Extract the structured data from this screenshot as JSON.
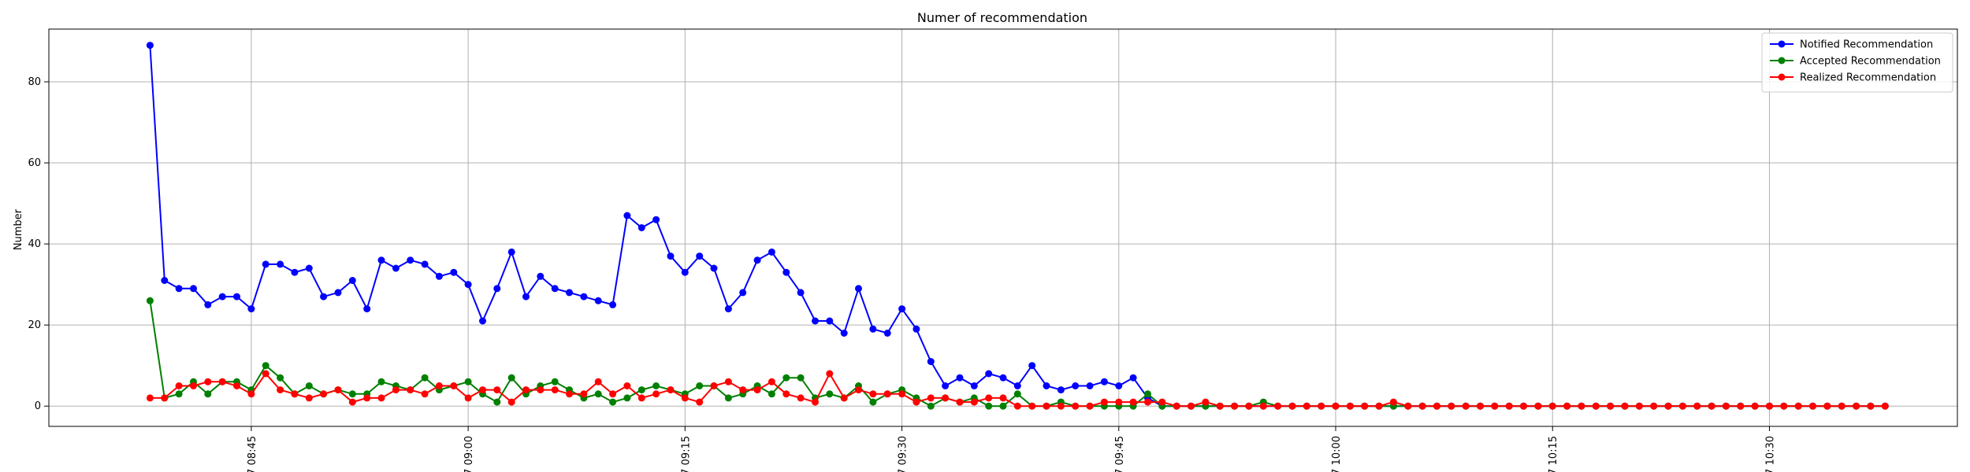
{
  "chart_data": {
    "type": "line",
    "title": "Numer of recommendation",
    "xlabel": "",
    "ylabel": "Number",
    "x_start": "08:38",
    "x_step_minutes": 1,
    "xlim": [
      "08:31",
      "10:43"
    ],
    "ylim": [
      -5,
      93
    ],
    "yticks": [
      0,
      20,
      40,
      60,
      80
    ],
    "xticks": [
      "08:45",
      "09:00",
      "09:15",
      "09:30",
      "09:45",
      "10:00",
      "10:15",
      "10:30"
    ],
    "xtick_labels": [
      "08:45",
      "09:00",
      "09:15",
      "09:30",
      "09:45",
      "10:00",
      "10:15",
      "10:30"
    ],
    "xtick_label_prefix": "7",
    "grid": true,
    "legend_position": "top-right",
    "series": [
      {
        "name": "Notified Recommendation",
        "color": "#0000ff",
        "values": [
          89,
          31,
          29,
          29,
          25,
          27,
          27,
          24,
          35,
          35,
          33,
          34,
          27,
          28,
          31,
          24,
          36,
          34,
          36,
          35,
          32,
          33,
          30,
          21,
          29,
          38,
          27,
          32,
          29,
          28,
          27,
          26,
          25,
          47,
          44,
          46,
          37,
          33,
          37,
          34,
          24,
          28,
          36,
          38,
          33,
          28,
          21,
          21,
          18,
          29,
          19,
          18,
          24,
          19,
          11,
          5,
          7,
          5,
          8,
          7,
          5,
          10,
          5,
          4,
          5,
          5,
          6,
          5,
          7,
          2,
          0,
          0,
          0,
          0,
          0,
          0,
          0,
          0,
          0,
          0,
          0,
          0,
          0,
          0,
          0,
          0,
          0,
          0,
          0,
          0,
          0,
          0,
          0,
          0,
          0,
          0,
          0,
          0,
          0,
          0,
          0,
          0,
          0,
          0,
          0,
          0,
          0,
          0,
          0,
          0,
          0,
          0,
          0,
          0,
          0,
          0,
          0,
          0,
          0,
          0,
          0
        ]
      },
      {
        "name": "Accepted Recommendation",
        "color": "#008000",
        "values": [
          26,
          2,
          3,
          6,
          3,
          6,
          6,
          4,
          10,
          7,
          3,
          5,
          3,
          4,
          3,
          3,
          6,
          5,
          4,
          7,
          4,
          5,
          6,
          3,
          1,
          7,
          3,
          5,
          6,
          4,
          2,
          3,
          1,
          2,
          4,
          5,
          4,
          3,
          5,
          5,
          2,
          3,
          5,
          3,
          7,
          7,
          2,
          3,
          2,
          5,
          1,
          3,
          4,
          2,
          0,
          2,
          1,
          2,
          0,
          0,
          3,
          0,
          0,
          1,
          0,
          0,
          0,
          0,
          0,
          3,
          0,
          0,
          0,
          0,
          0,
          0,
          0,
          1,
          0,
          0,
          0,
          0,
          0,
          0,
          0,
          0,
          0,
          0,
          0,
          0,
          0,
          0,
          0,
          0,
          0,
          0,
          0,
          0,
          0,
          0,
          0,
          0,
          0,
          0,
          0,
          0,
          0,
          0,
          0,
          0,
          0,
          0,
          0,
          0,
          0,
          0,
          0,
          0,
          0,
          0,
          0
        ]
      },
      {
        "name": "Realized Recommendation",
        "color": "#ff0000",
        "values": [
          2,
          2,
          5,
          5,
          6,
          6,
          5,
          3,
          8,
          4,
          3,
          2,
          3,
          4,
          1,
          2,
          2,
          4,
          4,
          3,
          5,
          5,
          2,
          4,
          4,
          1,
          4,
          4,
          4,
          3,
          3,
          6,
          3,
          5,
          2,
          3,
          4,
          2,
          1,
          5,
          6,
          4,
          4,
          6,
          3,
          2,
          1,
          8,
          2,
          4,
          3,
          3,
          3,
          1,
          2,
          2,
          1,
          1,
          2,
          2,
          0,
          0,
          0,
          0,
          0,
          0,
          1,
          1,
          1,
          1,
          1,
          0,
          0,
          1,
          0,
          0,
          0,
          0,
          0,
          0,
          0,
          0,
          0,
          0,
          0,
          0,
          1,
          0,
          0,
          0,
          0,
          0,
          0,
          0,
          0,
          0,
          0,
          0,
          0,
          0,
          0,
          0,
          0,
          0,
          0,
          0,
          0,
          0,
          0,
          0,
          0,
          0,
          0,
          0,
          0,
          0,
          0,
          0,
          0,
          0,
          0
        ]
      }
    ]
  }
}
